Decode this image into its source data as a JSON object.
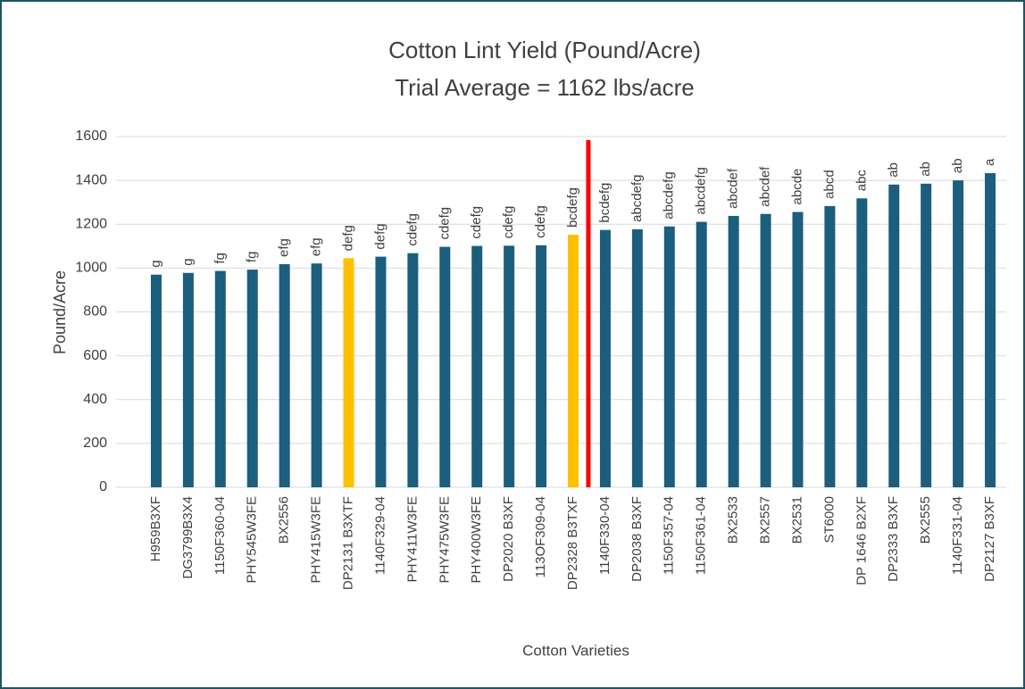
{
  "chart_data": {
    "type": "bar",
    "title": "Cotton Lint Yield (Pound/Acre)",
    "subtitle": "Trial Average = 1162 lbs/acre",
    "y_label": "Pound/Acre",
    "x_label": "Cotton Varieties",
    "categories": [
      "H959B3XF",
      "DG3799B3X4",
      "1150F360-04",
      "PHY545W3FE",
      "BX2556",
      "PHY415W3FE",
      "DP2131 B3XTF",
      "1140F329-04",
      "PHY411W3FE",
      "PHY475W3FE",
      "PHY400W3FE",
      "DP2020 B3XF",
      "113OF309-04",
      "DP2328 B3TXF",
      "1140F330-04",
      "DP2038 B3XF",
      "1150F357-04",
      "1150F361-04",
      "BX2533",
      "BX2557",
      "BX2531",
      "ST6000",
      "DP 1646 B2XF",
      "DP2333 B3XF",
      "BX2555",
      "1140F331-04",
      "DP2127 B3XF"
    ],
    "values": [
      970,
      978,
      987,
      993,
      1018,
      1021,
      1045,
      1052,
      1068,
      1097,
      1101,
      1102,
      1104,
      1152,
      1174,
      1177,
      1190,
      1211,
      1238,
      1247,
      1256,
      1283,
      1318,
      1381,
      1385,
      1400,
      1433
    ],
    "significance_letters": [
      "g",
      "g",
      "fg",
      "fg",
      "efg",
      "efg",
      "defg",
      "defg",
      "cdefg",
      "cdefg",
      "cdefg",
      "cdefg",
      "cdefg",
      "bcdefg",
      "bcdefg",
      "abcdefg",
      "abcdefg",
      "abcdefg",
      "abcdef",
      "abcdef",
      "abcde",
      "abcd",
      "abc",
      "ab",
      "ab",
      "ab",
      "a"
    ],
    "colors": [
      "#1b5e7e",
      "#1b5e7e",
      "#1b5e7e",
      "#1b5e7e",
      "#1b5e7e",
      "#1b5e7e",
      "#ffc000",
      "#1b5e7e",
      "#1b5e7e",
      "#1b5e7e",
      "#1b5e7e",
      "#1b5e7e",
      "#1b5e7e",
      "#ffc000",
      "#1b5e7e",
      "#1b5e7e",
      "#1b5e7e",
      "#1b5e7e",
      "#1b5e7e",
      "#1b5e7e",
      "#1b5e7e",
      "#1b5e7e",
      "#1b5e7e",
      "#1b5e7e",
      "#1b5e7e",
      "#1b5e7e",
      "#1b5e7e"
    ],
    "ylim": [
      0,
      1600
    ],
    "yticks": [
      0,
      200,
      400,
      600,
      800,
      1000,
      1200,
      1400,
      1600
    ],
    "grid": true
  }
}
